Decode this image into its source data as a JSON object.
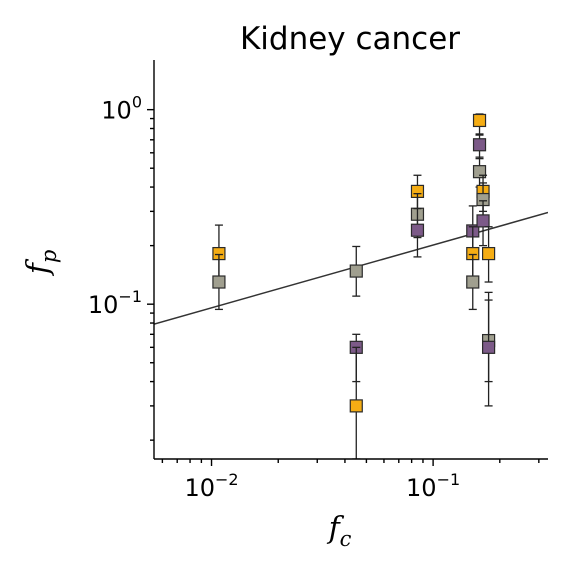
{
  "chart_data": {
    "type": "scatter",
    "title": "Kidney cancer",
    "xlabel": "f",
    "xlabel_sub": "c",
    "ylabel": "f",
    "ylabel_sub": "p",
    "xscale": "log",
    "yscale": "log",
    "xlim": [
      0.0055,
      0.33
    ],
    "ylim": [
      0.016,
      1.8
    ],
    "x_ticks": [
      {
        "base": "10",
        "exp": "−2",
        "value": 0.01
      },
      {
        "base": "10",
        "exp": "−1",
        "value": 0.1
      }
    ],
    "y_ticks": [
      {
        "base": "10",
        "exp": "−1",
        "value": 0.1
      },
      {
        "base": "10",
        "exp": "0",
        "value": 1.0
      }
    ],
    "grid": false,
    "colors": {
      "orange": "#f5ad14",
      "gray": "#a09f8f",
      "purple": "#7c5a88",
      "line": "#333333"
    },
    "fit_line": {
      "x": [
        0.0055,
        0.33
      ],
      "y": [
        0.079,
        0.296
      ]
    },
    "points": [
      {
        "x": 0.0108,
        "y": 0.182,
        "color": "orange",
        "err": [
          0.13,
          0.255
        ]
      },
      {
        "x": 0.0108,
        "y": 0.13,
        "color": "gray",
        "err": [
          0.094,
          0.18
        ]
      },
      {
        "x": 0.045,
        "y": 0.148,
        "color": "gray",
        "err": [
          0.11,
          0.198
        ]
      },
      {
        "x": 0.045,
        "y": 0.06,
        "color": "purple",
        "err": [
          0.04,
          0.07
        ]
      },
      {
        "x": 0.045,
        "y": 0.03,
        "color": "orange",
        "err": [
          0.016,
          0.06
        ]
      },
      {
        "x": 0.085,
        "y": 0.38,
        "color": "orange",
        "err": [
          0.3,
          0.46
        ]
      },
      {
        "x": 0.085,
        "y": 0.29,
        "color": "gray",
        "err": [
          0.22,
          0.37
        ]
      },
      {
        "x": 0.085,
        "y": 0.24,
        "color": "purple",
        "err": [
          0.175,
          0.31
        ]
      },
      {
        "x": 0.151,
        "y": 0.238,
        "color": "purple",
        "err": [
          0.19,
          0.32
        ]
      },
      {
        "x": 0.151,
        "y": 0.182,
        "color": "orange",
        "err": [
          0.13,
          0.25
        ]
      },
      {
        "x": 0.151,
        "y": 0.13,
        "color": "gray",
        "err": [
          0.094,
          0.18
        ]
      },
      {
        "x": 0.162,
        "y": 0.88,
        "color": "orange",
        "err": [
          0.75,
          0.95
        ]
      },
      {
        "x": 0.162,
        "y": 0.66,
        "color": "purple",
        "err": [
          0.56,
          0.74
        ]
      },
      {
        "x": 0.162,
        "y": 0.48,
        "color": "gray",
        "err": [
          0.4,
          0.57
        ]
      },
      {
        "x": 0.168,
        "y": 0.38,
        "color": "orange",
        "err": [
          0.3,
          0.46
        ]
      },
      {
        "x": 0.168,
        "y": 0.345,
        "color": "gray",
        "err": [
          0.27,
          0.42
        ]
      },
      {
        "x": 0.168,
        "y": 0.268,
        "color": "purple",
        "err": [
          0.2,
          0.34
        ]
      },
      {
        "x": 0.178,
        "y": 0.182,
        "color": "orange",
        "err": [
          0.13,
          0.25
        ]
      },
      {
        "x": 0.178,
        "y": 0.065,
        "color": "gray",
        "err": [
          0.04,
          0.105
        ]
      },
      {
        "x": 0.178,
        "y": 0.06,
        "color": "purple",
        "err": [
          0.03,
          0.115
        ]
      }
    ]
  }
}
